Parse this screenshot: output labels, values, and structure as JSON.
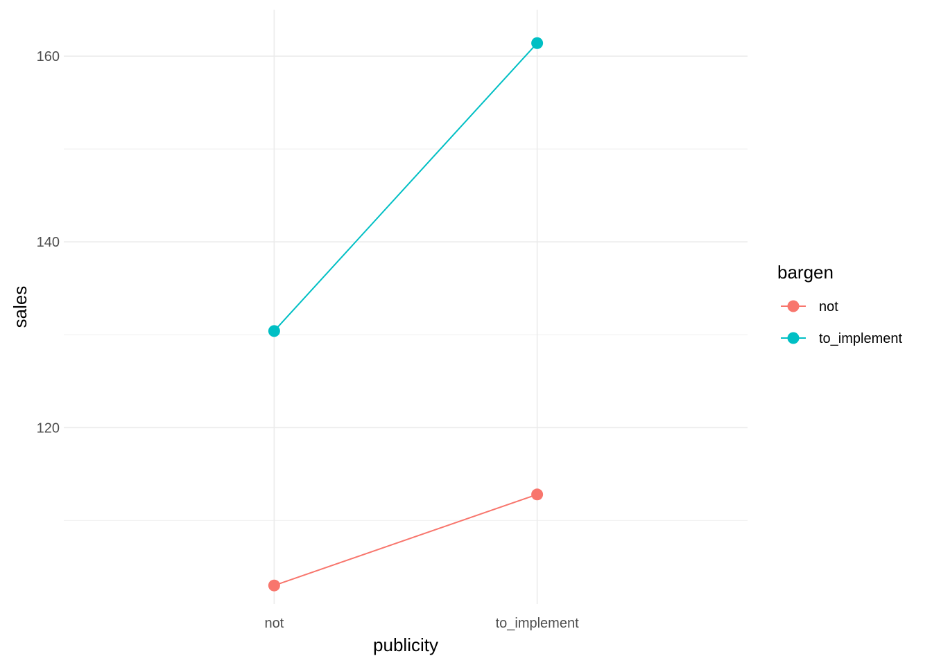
{
  "chart_data": {
    "type": "line",
    "xlabel": "publicity",
    "ylabel": "sales",
    "categories": [
      "not",
      "to_implement"
    ],
    "yticks": [
      120,
      140,
      160
    ],
    "ylim": [
      101,
      165
    ],
    "grid": true,
    "legend": {
      "title": "bargen",
      "position": "right"
    },
    "series": [
      {
        "name": "not",
        "color": "#F8766D",
        "values": [
          103.0,
          112.8
        ]
      },
      {
        "name": "to_implement",
        "color": "#00BFC4",
        "values": [
          130.4,
          161.4
        ]
      }
    ]
  }
}
